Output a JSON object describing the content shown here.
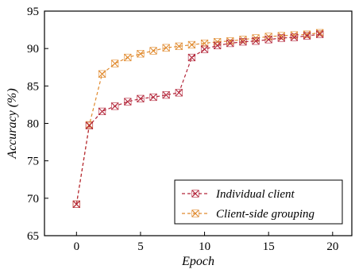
{
  "chart_data": {
    "type": "line",
    "xlabel": "Epoch",
    "ylabel": "Accuracy (%)",
    "xlim": [
      -2.5,
      21.5
    ],
    "ylim": [
      65,
      95
    ],
    "xticks": [
      0,
      5,
      10,
      15,
      20
    ],
    "yticks": [
      65,
      70,
      75,
      80,
      85,
      90,
      95
    ],
    "grid": false,
    "legend_position": "bottom-right",
    "x": [
      0,
      1,
      2,
      3,
      4,
      5,
      6,
      7,
      8,
      9,
      10,
      11,
      12,
      13,
      14,
      15,
      16,
      17,
      18,
      19
    ],
    "series": [
      {
        "name": "Individual client",
        "color": "#b3263a",
        "values": [
          69.2,
          79.7,
          81.6,
          82.3,
          82.9,
          83.3,
          83.5,
          83.8,
          84.1,
          88.8,
          89.9,
          90.4,
          90.7,
          90.9,
          91.0,
          91.2,
          91.4,
          91.5,
          91.7,
          91.9
        ]
      },
      {
        "name": "Client-side grouping",
        "color": "#e08a2e",
        "values": [
          69.2,
          79.8,
          86.6,
          88.0,
          88.8,
          89.3,
          89.7,
          90.1,
          90.3,
          90.5,
          90.7,
          90.9,
          91.0,
          91.2,
          91.4,
          91.6,
          91.7,
          91.8,
          91.9,
          92.1
        ]
      }
    ]
  }
}
